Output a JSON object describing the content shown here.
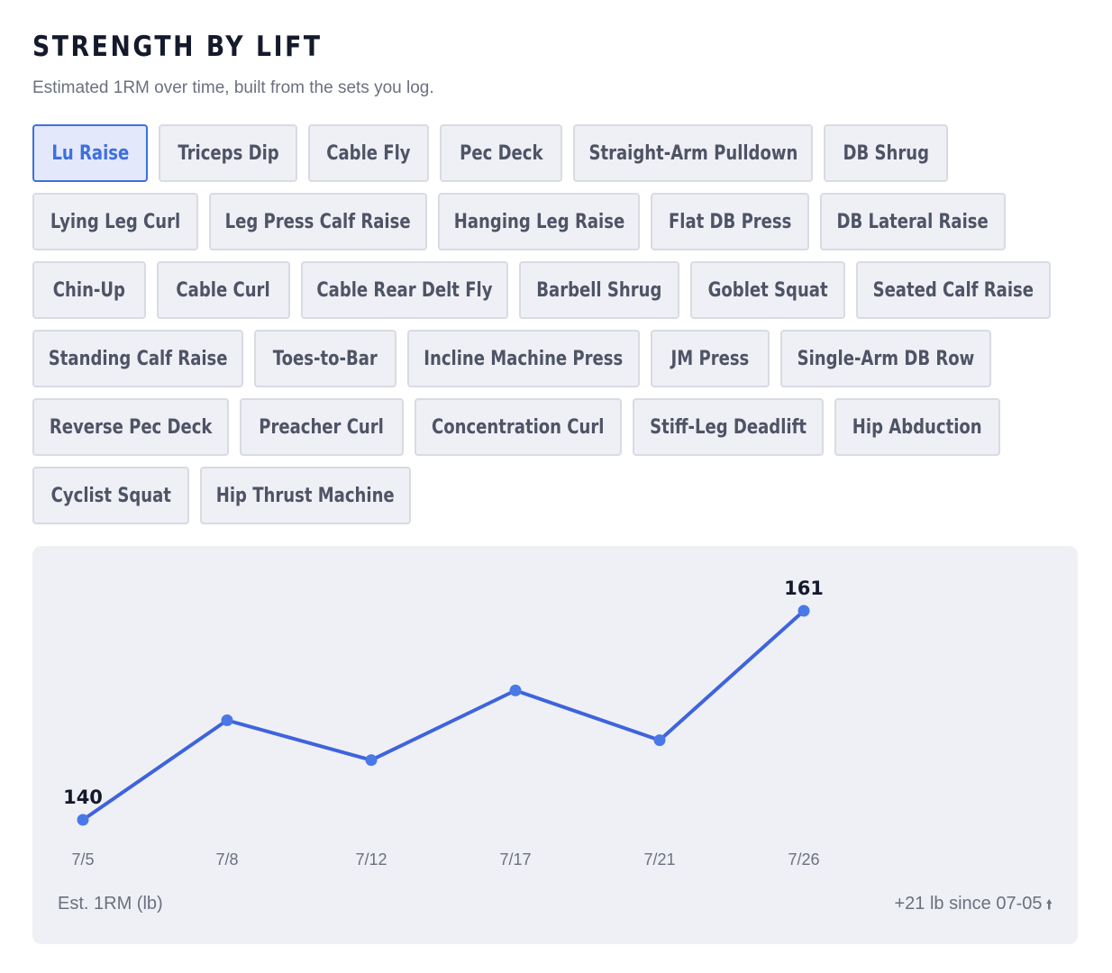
{
  "header": {
    "title": "STRENGTH BY LIFT",
    "subtitle": "Estimated 1RM over time, built from the sets you log."
  },
  "selected_lift": "Lu Raise",
  "lift_rows": [
    [
      "Lu Raise",
      "Triceps Dip",
      "Cable Fly",
      "Pec Deck",
      "Straight-Arm Pulldown",
      "DB Shrug"
    ],
    [
      "Lying Leg Curl",
      "Leg Press Calf Raise",
      "Hanging Leg Raise",
      "Flat DB Press",
      "DB Lateral Raise"
    ],
    [
      "Chin-Up",
      "Cable Curl",
      "Cable Rear Delt Fly",
      "Barbell Shrug",
      "Goblet Squat",
      "Seated Calf Raise"
    ],
    [
      "Standing Calf Raise",
      "Toes-to-Bar",
      "Incline Machine Press",
      "JM Press",
      "Single-Arm DB Row"
    ],
    [
      "Reverse Pec Deck",
      "Preacher Curl",
      "Concentration Curl",
      "Stiff-Leg Deadlift",
      "Hip Abduction"
    ],
    [
      "Cyclist Squat",
      "Hip Thrust Machine"
    ]
  ],
  "colors": {
    "accent": "#3e6fe0",
    "line": "#3e63dd",
    "point": "#4a78e6",
    "chip_bg": "#eff0f5",
    "chip_border": "#d9dbe3",
    "card_bg": "#eff0f5"
  },
  "chart_data": {
    "type": "line",
    "x": [
      "7/5",
      "7/8",
      "7/12",
      "7/17",
      "7/21",
      "7/26"
    ],
    "series": [
      {
        "values": [
          140,
          150,
          146,
          153,
          148,
          161
        ]
      }
    ],
    "data_labels": {
      "7/5": "140",
      "7/26": "161"
    },
    "ylabel": "Est. 1RM (lb)",
    "grid": false,
    "annotation": "+21 lb since 07-05"
  },
  "footer": {
    "unit_label": "Est. 1RM (lb)",
    "change_text": "+21 lb since 07-05",
    "change_icon": "arrow-up-icon"
  }
}
